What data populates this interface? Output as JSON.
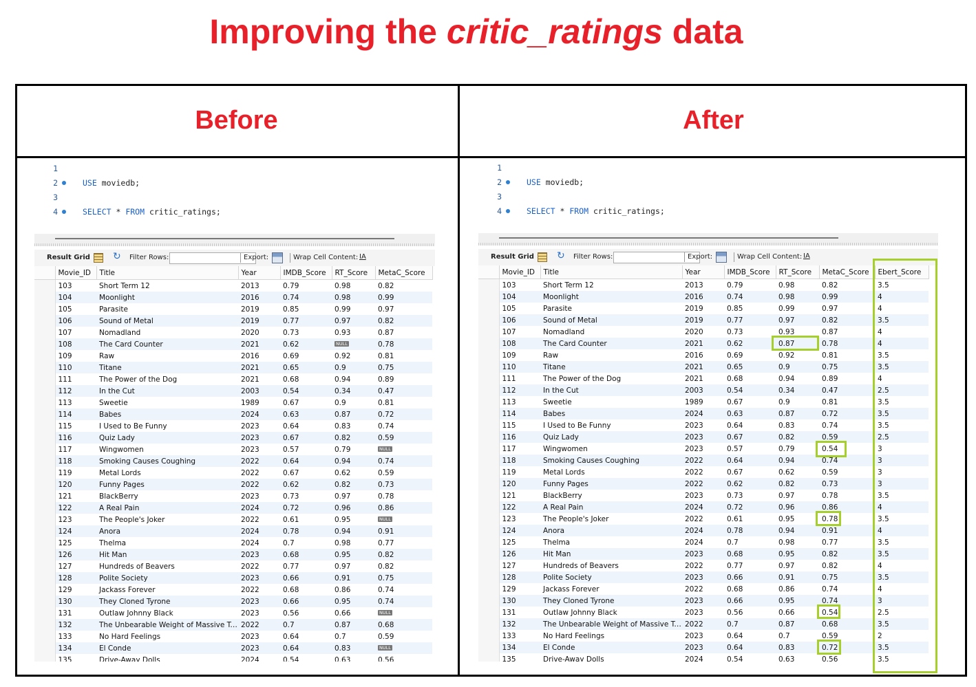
{
  "title": {
    "prefix": "Improving the ",
    "emphasis": "critic_ratings",
    "suffix": " data"
  },
  "panels": {
    "before_label": "Before",
    "after_label": "After"
  },
  "editor": {
    "line_numbers": [
      "1",
      "2",
      "3",
      "4"
    ],
    "line2_keyword": "USE",
    "line2_rest": " moviedb;",
    "line4_kw1": "SELECT",
    "line4_mid": " * ",
    "line4_kw2": "FROM",
    "line4_rest": " critic_ratings;"
  },
  "toolbar": {
    "result_grid": "Result Grid",
    "filter_rows": "Filter Rows:",
    "export": "Export:",
    "wrap": "Wrap Cell Content:",
    "wrap_icon": "IA"
  },
  "null_label": "NULL",
  "before": {
    "columns": [
      "Movie_ID",
      "Title",
      "Year",
      "IMDB_Score",
      "RT_Score",
      "MetaC_Score"
    ],
    "rows": [
      [
        "103",
        "Short Term 12",
        "2013",
        "0.79",
        "0.98",
        "0.82"
      ],
      [
        "104",
        "Moonlight",
        "2016",
        "0.74",
        "0.98",
        "0.99"
      ],
      [
        "105",
        "Parasite",
        "2019",
        "0.85",
        "0.99",
        "0.97"
      ],
      [
        "106",
        "Sound of Metal",
        "2019",
        "0.77",
        "0.97",
        "0.82"
      ],
      [
        "107",
        "Nomadland",
        "2020",
        "0.73",
        "0.93",
        "0.87"
      ],
      [
        "108",
        "The Card Counter",
        "2021",
        "0.62",
        "NULL",
        "0.78"
      ],
      [
        "109",
        "Raw",
        "2016",
        "0.69",
        "0.92",
        "0.81"
      ],
      [
        "110",
        "Titane",
        "2021",
        "0.65",
        "0.9",
        "0.75"
      ],
      [
        "111",
        "The Power of the Dog",
        "2021",
        "0.68",
        "0.94",
        "0.89"
      ],
      [
        "112",
        "In the Cut",
        "2003",
        "0.54",
        "0.34",
        "0.47"
      ],
      [
        "113",
        "Sweetie",
        "1989",
        "0.67",
        "0.9",
        "0.81"
      ],
      [
        "114",
        "Babes",
        "2024",
        "0.63",
        "0.87",
        "0.72"
      ],
      [
        "115",
        "I Used to Be Funny",
        "2023",
        "0.64",
        "0.83",
        "0.74"
      ],
      [
        "116",
        "Quiz Lady",
        "2023",
        "0.67",
        "0.82",
        "0.59"
      ],
      [
        "117",
        "Wingwomen",
        "2023",
        "0.57",
        "0.79",
        "NULL"
      ],
      [
        "118",
        "Smoking Causes Coughing",
        "2022",
        "0.64",
        "0.94",
        "0.74"
      ],
      [
        "119",
        "Metal Lords",
        "2022",
        "0.67",
        "0.62",
        "0.59"
      ],
      [
        "120",
        "Funny Pages",
        "2022",
        "0.62",
        "0.82",
        "0.73"
      ],
      [
        "121",
        "BlackBerry",
        "2023",
        "0.73",
        "0.97",
        "0.78"
      ],
      [
        "122",
        "A Real Pain",
        "2024",
        "0.72",
        "0.96",
        "0.86"
      ],
      [
        "123",
        "The People's Joker",
        "2022",
        "0.61",
        "0.95",
        "NULL"
      ],
      [
        "124",
        "Anora",
        "2024",
        "0.78",
        "0.94",
        "0.91"
      ],
      [
        "125",
        "Thelma",
        "2024",
        "0.7",
        "0.98",
        "0.77"
      ],
      [
        "126",
        "Hit Man",
        "2023",
        "0.68",
        "0.95",
        "0.82"
      ],
      [
        "127",
        "Hundreds of Beavers",
        "2022",
        "0.77",
        "0.97",
        "0.82"
      ],
      [
        "128",
        "Polite Society",
        "2023",
        "0.66",
        "0.91",
        "0.75"
      ],
      [
        "129",
        "Jackass Forever",
        "2022",
        "0.68",
        "0.86",
        "0.74"
      ],
      [
        "130",
        "They Cloned Tyrone",
        "2023",
        "0.66",
        "0.95",
        "0.74"
      ],
      [
        "131",
        "Outlaw Johnny Black",
        "2023",
        "0.56",
        "0.66",
        "NULL"
      ],
      [
        "132",
        "The Unbearable Weight of Massive Ta...",
        "2022",
        "0.7",
        "0.87",
        "0.68"
      ],
      [
        "133",
        "No Hard Feelings",
        "2023",
        "0.64",
        "0.7",
        "0.59"
      ],
      [
        "134",
        "El Conde",
        "2023",
        "0.64",
        "0.83",
        "NULL"
      ],
      [
        "135",
        "Drive-Away Dolls",
        "2024",
        "0.54",
        "0.63",
        "0.56"
      ]
    ]
  },
  "after": {
    "columns": [
      "Movie_ID",
      "Title",
      "Year",
      "IMDB_Score",
      "RT_Score",
      "MetaC_Score",
      "Ebert_Score"
    ],
    "rows": [
      [
        "103",
        "Short Term 12",
        "2013",
        "0.79",
        "0.98",
        "0.82",
        "3.5"
      ],
      [
        "104",
        "Moonlight",
        "2016",
        "0.74",
        "0.98",
        "0.99",
        "4"
      ],
      [
        "105",
        "Parasite",
        "2019",
        "0.85",
        "0.99",
        "0.97",
        "4"
      ],
      [
        "106",
        "Sound of Metal",
        "2019",
        "0.77",
        "0.97",
        "0.82",
        "3.5"
      ],
      [
        "107",
        "Nomadland",
        "2020",
        "0.73",
        "0.93",
        "0.87",
        "4"
      ],
      [
        "108",
        "The Card Counter",
        "2021",
        "0.62",
        "0.87",
        "0.78",
        "4"
      ],
      [
        "109",
        "Raw",
        "2016",
        "0.69",
        "0.92",
        "0.81",
        "3.5"
      ],
      [
        "110",
        "Titane",
        "2021",
        "0.65",
        "0.9",
        "0.75",
        "3.5"
      ],
      [
        "111",
        "The Power of the Dog",
        "2021",
        "0.68",
        "0.94",
        "0.89",
        "4"
      ],
      [
        "112",
        "In the Cut",
        "2003",
        "0.54",
        "0.34",
        "0.47",
        "2.5"
      ],
      [
        "113",
        "Sweetie",
        "1989",
        "0.67",
        "0.9",
        "0.81",
        "3.5"
      ],
      [
        "114",
        "Babes",
        "2024",
        "0.63",
        "0.87",
        "0.72",
        "3.5"
      ],
      [
        "115",
        "I Used to Be Funny",
        "2023",
        "0.64",
        "0.83",
        "0.74",
        "3.5"
      ],
      [
        "116",
        "Quiz Lady",
        "2023",
        "0.67",
        "0.82",
        "0.59",
        "2.5"
      ],
      [
        "117",
        "Wingwomen",
        "2023",
        "0.57",
        "0.79",
        "0.54",
        "3"
      ],
      [
        "118",
        "Smoking Causes Coughing",
        "2022",
        "0.64",
        "0.94",
        "0.74",
        "3"
      ],
      [
        "119",
        "Metal Lords",
        "2022",
        "0.67",
        "0.62",
        "0.59",
        "3"
      ],
      [
        "120",
        "Funny Pages",
        "2022",
        "0.62",
        "0.82",
        "0.73",
        "3"
      ],
      [
        "121",
        "BlackBerry",
        "2023",
        "0.73",
        "0.97",
        "0.78",
        "3.5"
      ],
      [
        "122",
        "A Real Pain",
        "2024",
        "0.72",
        "0.96",
        "0.86",
        "4"
      ],
      [
        "123",
        "The People's Joker",
        "2022",
        "0.61",
        "0.95",
        "0.78",
        "3.5"
      ],
      [
        "124",
        "Anora",
        "2024",
        "0.78",
        "0.94",
        "0.91",
        "4"
      ],
      [
        "125",
        "Thelma",
        "2024",
        "0.7",
        "0.98",
        "0.77",
        "3.5"
      ],
      [
        "126",
        "Hit Man",
        "2023",
        "0.68",
        "0.95",
        "0.82",
        "3.5"
      ],
      [
        "127",
        "Hundreds of Beavers",
        "2022",
        "0.77",
        "0.97",
        "0.82",
        "4"
      ],
      [
        "128",
        "Polite Society",
        "2023",
        "0.66",
        "0.91",
        "0.75",
        "3.5"
      ],
      [
        "129",
        "Jackass Forever",
        "2022",
        "0.68",
        "0.86",
        "0.74",
        "4"
      ],
      [
        "130",
        "They Cloned Tyrone",
        "2023",
        "0.66",
        "0.95",
        "0.74",
        "3"
      ],
      [
        "131",
        "Outlaw Johnny Black",
        "2023",
        "0.56",
        "0.66",
        "0.54",
        "2.5"
      ],
      [
        "132",
        "The Unbearable Weight of Massive Ta...",
        "2022",
        "0.7",
        "0.87",
        "0.68",
        "3.5"
      ],
      [
        "133",
        "No Hard Feelings",
        "2023",
        "0.64",
        "0.7",
        "0.59",
        "2"
      ],
      [
        "134",
        "El Conde",
        "2023",
        "0.64",
        "0.83",
        "0.72",
        "3.5"
      ],
      [
        "135",
        "Drive-Away Dolls",
        "2024",
        "0.54",
        "0.63",
        "0.56",
        "3.5"
      ]
    ]
  },
  "colors": {
    "title_red": "#e8202a",
    "highlight_green": "#a6cf2e",
    "alt_row": "#eef4fb"
  }
}
